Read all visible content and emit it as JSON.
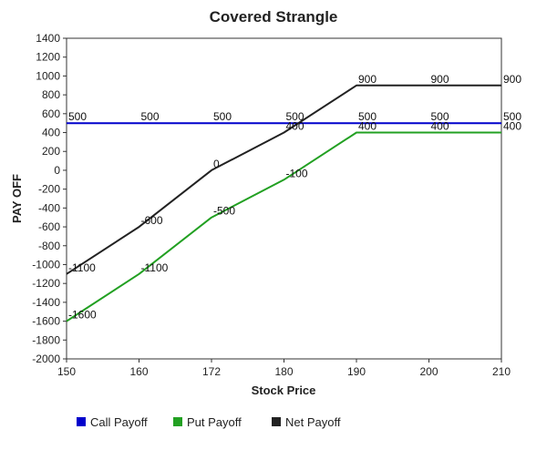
{
  "chart_data": {
    "type": "line",
    "title": "Covered Strangle",
    "xlabel": "Stock Price",
    "ylabel": "PAY OFF",
    "categories": [
      "150",
      "160",
      "172",
      "180",
      "190",
      "200",
      "210"
    ],
    "y_ticks": [
      1400,
      1200,
      1000,
      800,
      600,
      400,
      200,
      0,
      -200,
      -400,
      -600,
      -800,
      -1000,
      -1200,
      -1400,
      -1600,
      -1800,
      -2000
    ],
    "ylim": [
      -2000,
      1400
    ],
    "grid": false,
    "legend_position": "bottom",
    "series": [
      {
        "name": "Call Payoff",
        "color": "#0000cc",
        "values": [
          500,
          500,
          500,
          500,
          500,
          500,
          500
        ],
        "labels": [
          "500",
          "500",
          "500",
          "500",
          "500",
          "500",
          "500"
        ]
      },
      {
        "name": "Put Payoff",
        "color": "#22a022",
        "values": [
          -1600,
          -1100,
          -500,
          -100,
          400,
          400,
          400
        ],
        "labels": [
          "-1600",
          "-1100",
          "-500",
          "-100",
          "400",
          "400",
          "400"
        ]
      },
      {
        "name": "Net Payoff",
        "color": "#222222",
        "values": [
          -1100,
          -600,
          0,
          400,
          900,
          900,
          900
        ],
        "labels": [
          "-1100",
          "-600",
          "0",
          "400",
          "900",
          "900",
          "900"
        ]
      }
    ]
  }
}
